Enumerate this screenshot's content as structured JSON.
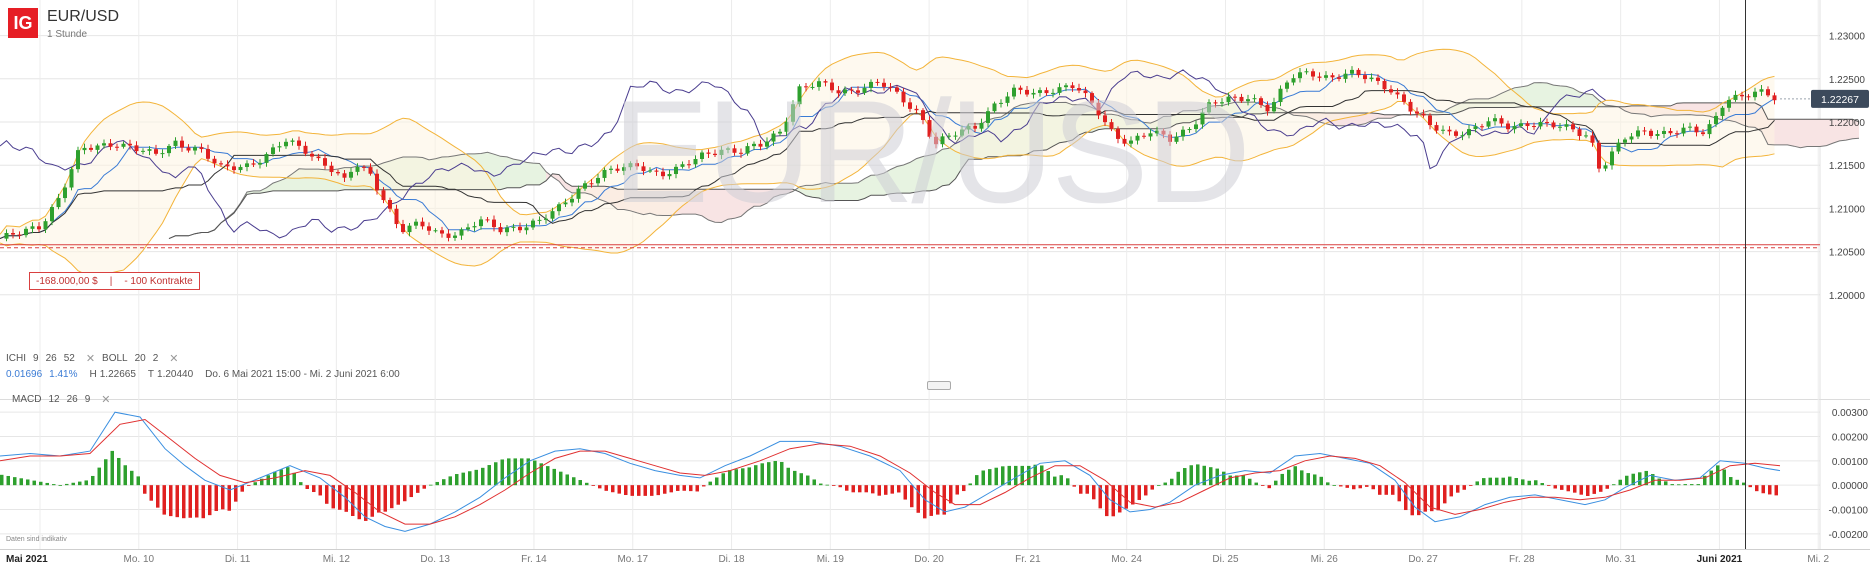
{
  "header": {
    "logo_text": "IG",
    "title": "EUR/USD",
    "timeframe": "1 Stunde"
  },
  "watermark": "EUR/USD",
  "indicators": {
    "ichimoku": {
      "name": "ICHI",
      "p1": "9",
      "p2": "26",
      "p3": "52"
    },
    "bollinger": {
      "name": "BOLL",
      "p1": "20",
      "p2": "2"
    },
    "macd": {
      "name": "MACD",
      "p1": "12",
      "p2": "26",
      "p3": "9"
    }
  },
  "stats": {
    "change": "0.01696",
    "change_pct": "1.41%",
    "high_label": "H",
    "high": "1.22665",
    "low_label": "T",
    "low": "1.20440",
    "range": "Do. 6 Mai 2021 15:00 - Mi. 2 Juni 2021 6:00"
  },
  "position": {
    "amount": "-168.000,00 $",
    "contracts": "- 100 Kontrakte"
  },
  "current_price": "1.22267",
  "footnote": "Daten sind indikativ",
  "colors": {
    "up": "#2ea02e",
    "down": "#e02020",
    "bollinger": "#f3b43a",
    "ichimoku_tenkan": "#3a7bd5",
    "ichimoku_kijun": "#333333",
    "ichimoku_chikou": "#4a3d8f",
    "cloud_bull": "#e7f3e1",
    "cloud_bear": "#f8e4e4",
    "macd_line": "#3a8fe0",
    "signal_line": "#e03030",
    "price_tag": "#3c4a5c",
    "position_line": "#d94040",
    "logo": "#e61e25"
  },
  "chart_data": [
    {
      "type": "candlestick",
      "title": "EUR/USD",
      "interval": "1 Stunde",
      "ylim": [
        1.195,
        1.2325
      ],
      "y_ticks": [
        "1.20000",
        "1.20500",
        "1.21000",
        "1.21500",
        "1.22000",
        "1.22500",
        "1.23000"
      ],
      "x_labels": [
        "Mai 2021",
        "Mo. 10",
        "Di. 11",
        "Mi. 12",
        "Do. 13",
        "Fr. 14",
        "Mo. 17",
        "Di. 18",
        "Mi. 19",
        "Do. 20",
        "Fr. 21",
        "Mo. 24",
        "Di. 25",
        "Mi. 26",
        "Do. 27",
        "Fr. 28",
        "Mo. 31",
        "Juni 2021",
        "Mi. 2"
      ],
      "current_price": 1.22267,
      "position_level": 1.2058,
      "close_path": [
        [
          0,
          1.2065
        ],
        [
          20,
          1.207
        ],
        [
          40,
          1.208
        ],
        [
          60,
          1.2115
        ],
        [
          80,
          1.2167
        ],
        [
          95,
          1.217
        ],
        [
          115,
          1.2177
        ],
        [
          130,
          1.2172
        ],
        [
          155,
          1.216
        ],
        [
          175,
          1.2177
        ],
        [
          200,
          1.2168
        ],
        [
          220,
          1.2145
        ],
        [
          245,
          1.215
        ],
        [
          265,
          1.216
        ],
        [
          285,
          1.2177
        ],
        [
          305,
          1.2168
        ],
        [
          330,
          1.2148
        ],
        [
          345,
          1.213
        ],
        [
          355,
          1.215
        ],
        [
          370,
          1.214
        ],
        [
          385,
          1.211
        ],
        [
          400,
          1.2075
        ],
        [
          420,
          1.208
        ],
        [
          440,
          1.207
        ],
        [
          460,
          1.2073
        ],
        [
          480,
          1.2085
        ],
        [
          500,
          1.2075
        ],
        [
          520,
          1.208
        ],
        [
          540,
          1.2085
        ],
        [
          560,
          1.21
        ],
        [
          580,
          1.2125
        ],
        [
          600,
          1.214
        ],
        [
          620,
          1.2145
        ],
        [
          640,
          1.215
        ],
        [
          660,
          1.214
        ],
        [
          680,
          1.2145
        ],
        [
          700,
          1.216
        ],
        [
          720,
          1.217
        ],
        [
          740,
          1.2165
        ],
        [
          760,
          1.2172
        ],
        [
          780,
          1.219
        ],
        [
          800,
          1.224
        ],
        [
          820,
          1.2243
        ],
        [
          840,
          1.2235
        ],
        [
          860,
          1.224
        ],
        [
          880,
          1.2245
        ],
        [
          900,
          1.2228
        ],
        [
          920,
          1.221
        ],
        [
          935,
          1.2175
        ],
        [
          955,
          1.2185
        ],
        [
          975,
          1.2195
        ],
        [
          995,
          1.2222
        ],
        [
          1015,
          1.2235
        ],
        [
          1035,
          1.2232
        ],
        [
          1055,
          1.224
        ],
        [
          1075,
          1.2242
        ],
        [
          1095,
          1.2215
        ],
        [
          1115,
          1.2185
        ],
        [
          1130,
          1.2178
        ],
        [
          1150,
          1.2187
        ],
        [
          1170,
          1.218
        ],
        [
          1190,
          1.2195
        ],
        [
          1210,
          1.222
        ],
        [
          1230,
          1.2225
        ],
        [
          1250,
          1.223
        ],
        [
          1270,
          1.2215
        ],
        [
          1290,
          1.225
        ],
        [
          1310,
          1.2258
        ],
        [
          1330,
          1.2252
        ],
        [
          1350,
          1.2255
        ],
        [
          1370,
          1.225
        ],
        [
          1390,
          1.224
        ],
        [
          1410,
          1.2215
        ],
        [
          1430,
          1.2195
        ],
        [
          1450,
          1.2188
        ],
        [
          1470,
          1.219
        ],
        [
          1490,
          1.22
        ],
        [
          1510,
          1.2195
        ],
        [
          1530,
          1.22
        ],
        [
          1550,
          1.2195
        ],
        [
          1570,
          1.2192
        ],
        [
          1590,
          1.2185
        ],
        [
          1600,
          1.2145
        ],
        [
          1610,
          1.216
        ],
        [
          1625,
          1.218
        ],
        [
          1645,
          1.219
        ],
        [
          1665,
          1.2188
        ],
        [
          1685,
          1.219
        ],
        [
          1705,
          1.2187
        ],
        [
          1715,
          1.2205
        ],
        [
          1725,
          1.2228
        ],
        [
          1745,
          1.223
        ],
        [
          1765,
          1.2233
        ],
        [
          1780,
          1.2225
        ]
      ]
    },
    {
      "type": "line",
      "title": "MACD",
      "ylim": [
        -0.0025,
        0.0035
      ],
      "y_ticks": [
        "-0.00200",
        "-0.00100",
        "0.00000",
        "0.00100",
        "0.00200",
        "0.00300"
      ],
      "series": [
        {
          "role": "macd",
          "points": [
            [
              0,
              0.0012
            ],
            [
              30,
              0.0013
            ],
            [
              60,
              0.0012
            ],
            [
              90,
              0.0014
            ],
            [
              115,
              0.003
            ],
            [
              140,
              0.0028
            ],
            [
              165,
              0.0015
            ],
            [
              185,
              0.0008
            ],
            [
              205,
              0.0002
            ],
            [
              230,
              -0.0002
            ],
            [
              260,
              0.0003
            ],
            [
              290,
              0.0008
            ],
            [
              320,
              0.0003
            ],
            [
              345,
              -0.0005
            ],
            [
              365,
              -0.0013
            ],
            [
              385,
              -0.0017
            ],
            [
              405,
              -0.0019
            ],
            [
              430,
              -0.0016
            ],
            [
              455,
              -0.0011
            ],
            [
              480,
              -0.0005
            ],
            [
              505,
              0.0003
            ],
            [
              530,
              0.001
            ],
            [
              555,
              0.0014
            ],
            [
              580,
              0.0015
            ],
            [
              605,
              0.0013
            ],
            [
              630,
              0.0009
            ],
            [
              655,
              0.0006
            ],
            [
              680,
              0.0004
            ],
            [
              700,
              0.0003
            ],
            [
              725,
              0.0008
            ],
            [
              750,
              0.0012
            ],
            [
              780,
              0.0018
            ],
            [
              810,
              0.0018
            ],
            [
              840,
              0.0016
            ],
            [
              870,
              0.0012
            ],
            [
              900,
              0.0006
            ],
            [
              925,
              -0.0006
            ],
            [
              945,
              -0.0011
            ],
            [
              965,
              -0.0009
            ],
            [
              990,
              -0.0003
            ],
            [
              1015,
              0.0003
            ],
            [
              1040,
              0.0009
            ],
            [
              1065,
              0.001
            ],
            [
              1090,
              0.0004
            ],
            [
              1110,
              -0.0006
            ],
            [
              1130,
              -0.0011
            ],
            [
              1150,
              -0.001
            ],
            [
              1170,
              -0.0007
            ],
            [
              1195,
              0.0
            ],
            [
              1220,
              0.0004
            ],
            [
              1245,
              0.0006
            ],
            [
              1270,
              0.0005
            ],
            [
              1295,
              0.0012
            ],
            [
              1320,
              0.0013
            ],
            [
              1345,
              0.0011
            ],
            [
              1370,
              0.0009
            ],
            [
              1395,
              0.0002
            ],
            [
              1415,
              -0.0009
            ],
            [
              1435,
              -0.0015
            ],
            [
              1460,
              -0.0013
            ],
            [
              1485,
              -0.0008
            ],
            [
              1510,
              -0.0005
            ],
            [
              1535,
              -0.0004
            ],
            [
              1560,
              -0.0006
            ],
            [
              1585,
              -0.0008
            ],
            [
              1605,
              -0.0006
            ],
            [
              1625,
              -0.0001
            ],
            [
              1650,
              0.0004
            ],
            [
              1675,
              0.0002
            ],
            [
              1700,
              0.0003
            ],
            [
              1720,
              0.001
            ],
            [
              1745,
              0.0009
            ],
            [
              1765,
              0.0007
            ],
            [
              1780,
              0.0006
            ]
          ]
        },
        {
          "role": "signal",
          "points": [
            [
              0,
              0.001
            ],
            [
              30,
              0.0012
            ],
            [
              60,
              0.0012
            ],
            [
              90,
              0.0013
            ],
            [
              120,
              0.0025
            ],
            [
              145,
              0.0027
            ],
            [
              170,
              0.0019
            ],
            [
              195,
              0.0011
            ],
            [
              220,
              0.0004
            ],
            [
              245,
              0.0001
            ],
            [
              275,
              0.0003
            ],
            [
              305,
              0.0006
            ],
            [
              330,
              0.0004
            ],
            [
              355,
              -0.0003
            ],
            [
              380,
              -0.0011
            ],
            [
              405,
              -0.0016
            ],
            [
              430,
              -0.0016
            ],
            [
              455,
              -0.0013
            ],
            [
              480,
              -0.0008
            ],
            [
              505,
              -0.0002
            ],
            [
              530,
              0.0005
            ],
            [
              555,
              0.0011
            ],
            [
              580,
              0.0014
            ],
            [
              605,
              0.0014
            ],
            [
              630,
              0.0011
            ],
            [
              655,
              0.0008
            ],
            [
              680,
              0.0005
            ],
            [
              705,
              0.0004
            ],
            [
              730,
              0.0006
            ],
            [
              760,
              0.001
            ],
            [
              790,
              0.0015
            ],
            [
              820,
              0.0017
            ],
            [
              850,
              0.0016
            ],
            [
              880,
              0.0012
            ],
            [
              910,
              0.0005
            ],
            [
              935,
              -0.0003
            ],
            [
              955,
              -0.0008
            ],
            [
              980,
              -0.0008
            ],
            [
              1005,
              -0.0003
            ],
            [
              1030,
              0.0003
            ],
            [
              1055,
              0.0008
            ],
            [
              1080,
              0.0008
            ],
            [
              1105,
              0.0002
            ],
            [
              1130,
              -0.0007
            ],
            [
              1155,
              -0.0009
            ],
            [
              1180,
              -0.0007
            ],
            [
              1205,
              -0.0002
            ],
            [
              1230,
              0.0003
            ],
            [
              1255,
              0.0005
            ],
            [
              1280,
              0.0006
            ],
            [
              1305,
              0.001
            ],
            [
              1330,
              0.0012
            ],
            [
              1355,
              0.0011
            ],
            [
              1380,
              0.0008
            ],
            [
              1405,
              0.0001
            ],
            [
              1430,
              -0.0009
            ],
            [
              1455,
              -0.0012
            ],
            [
              1480,
              -0.001
            ],
            [
              1505,
              -0.0007
            ],
            [
              1530,
              -0.0005
            ],
            [
              1555,
              -0.0005
            ],
            [
              1580,
              -0.0006
            ],
            [
              1605,
              -0.0005
            ],
            [
              1630,
              -0.0002
            ],
            [
              1655,
              0.0002
            ],
            [
              1680,
              0.0002
            ],
            [
              1705,
              0.0003
            ],
            [
              1730,
              0.0008
            ],
            [
              1755,
              0.0009
            ],
            [
              1780,
              0.0008
            ]
          ]
        }
      ]
    }
  ]
}
